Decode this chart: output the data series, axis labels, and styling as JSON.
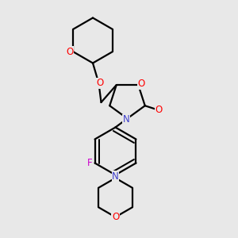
{
  "bg_color": "#e8e8e8",
  "bond_color": "#000000",
  "o_color": "#ff0000",
  "n_color": "#4040cc",
  "f_color": "#cc00cc",
  "line_width": 1.6,
  "fig_width": 3.0,
  "fig_height": 3.0,
  "dpi": 100,
  "xlim": [
    0,
    10
  ],
  "ylim": [
    0,
    10
  ]
}
